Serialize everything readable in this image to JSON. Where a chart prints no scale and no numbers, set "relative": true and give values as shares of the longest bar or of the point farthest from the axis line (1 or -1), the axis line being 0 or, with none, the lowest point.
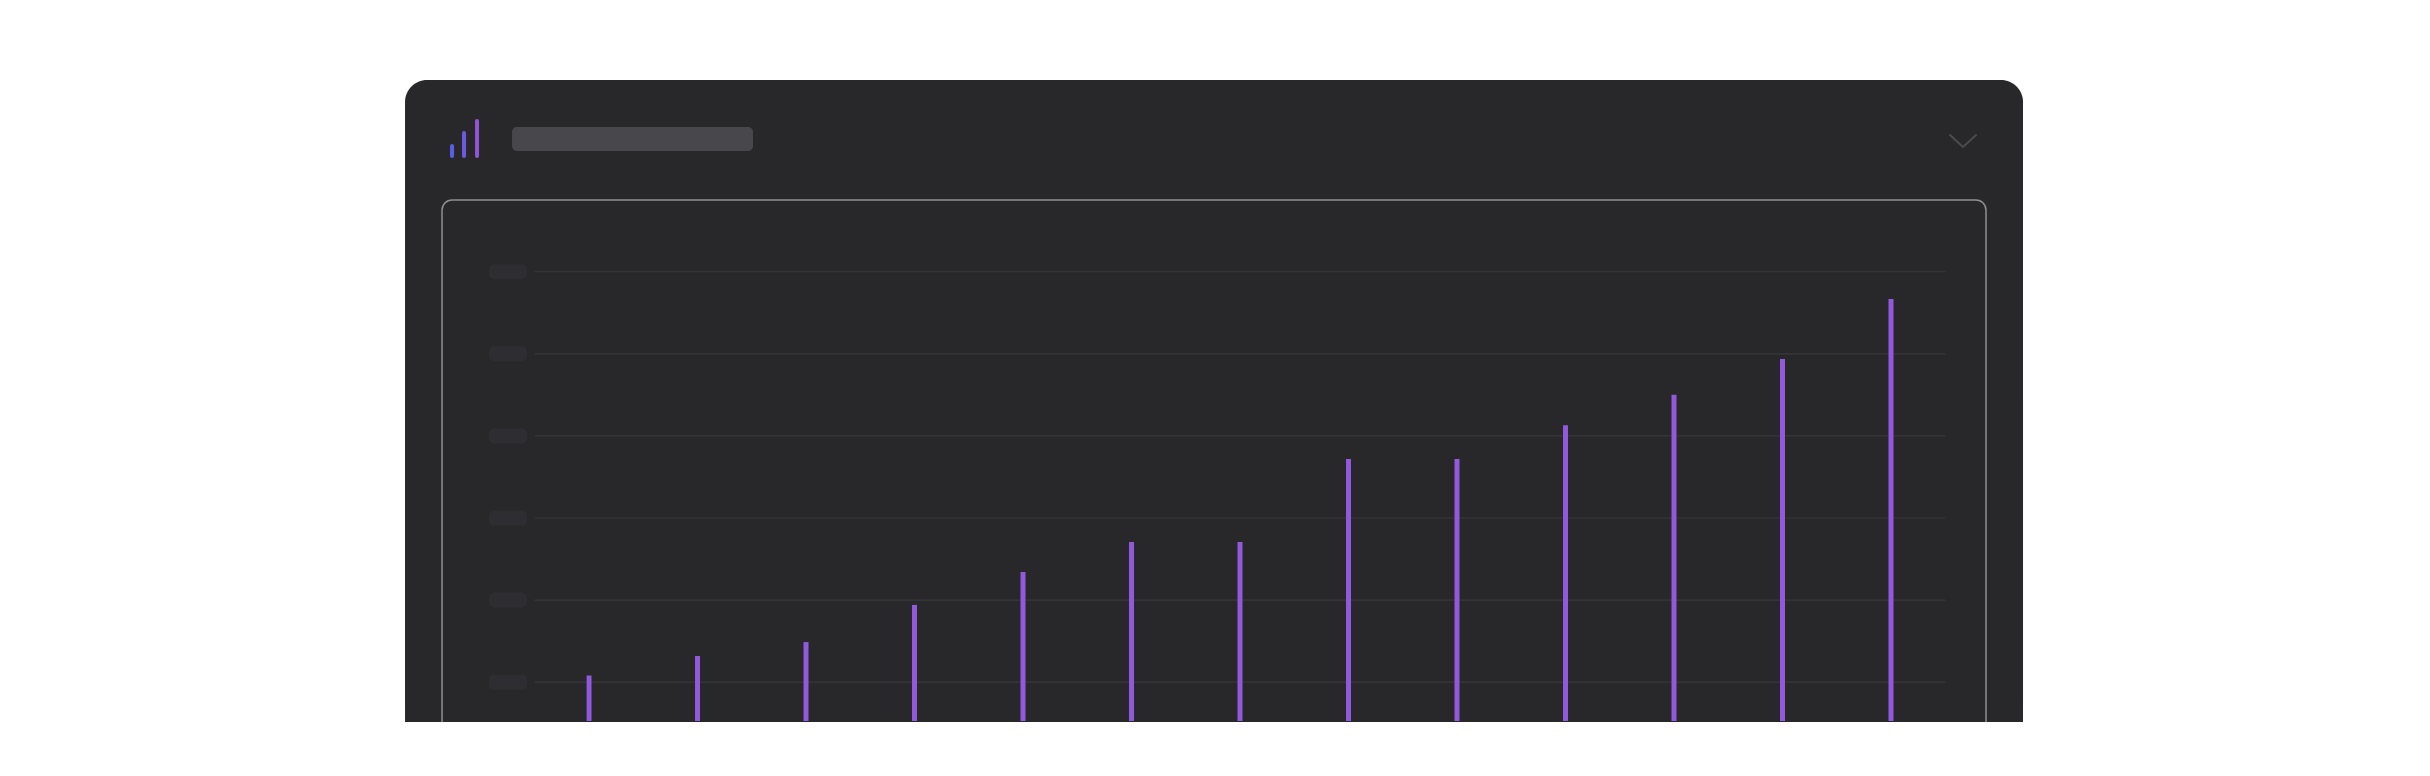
{
  "chart_data": {
    "type": "bar",
    "categories": [
      null,
      null,
      null,
      null,
      null,
      null,
      null,
      null,
      null,
      null,
      null,
      null,
      null
    ],
    "values": [
      0.108,
      0.154,
      0.187,
      0.275,
      0.353,
      0.424,
      0.424,
      0.621,
      0.621,
      0.701,
      0.773,
      0.858,
      1.0
    ],
    "color": "#9259dc",
    "relative": true,
    "grid": "y"
  }
}
